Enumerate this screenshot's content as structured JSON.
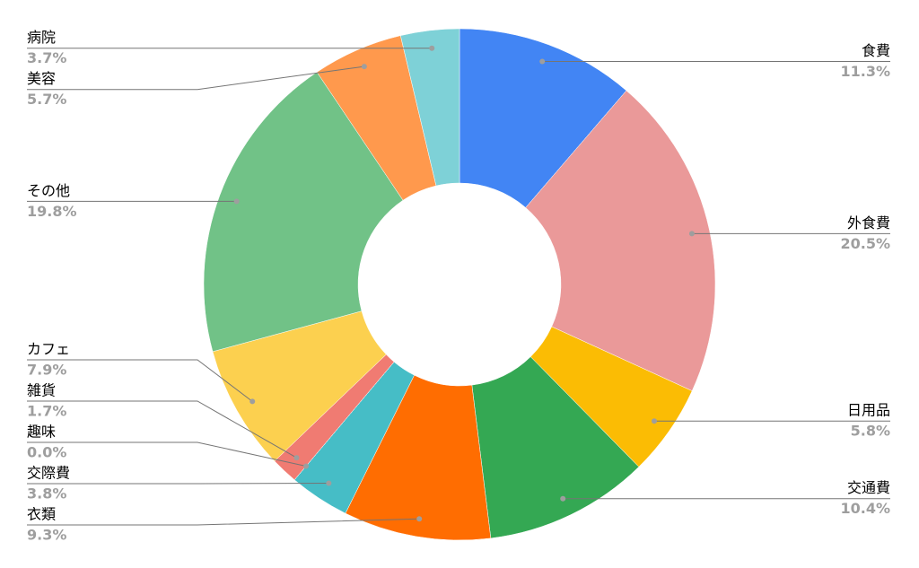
{
  "chart_data": {
    "type": "donut",
    "categories": [
      "食費",
      "外食費",
      "日用品",
      "交通費",
      "衣類",
      "交際費",
      "趣味",
      "雑貨",
      "カフェ",
      "その他",
      "美容",
      "病院"
    ],
    "values": [
      11.3,
      20.5,
      5.8,
      10.4,
      9.3,
      3.8,
      0.0,
      1.7,
      7.9,
      19.8,
      5.7,
      3.7
    ],
    "value_labels": [
      "11.3%",
      "20.5%",
      "5.8%",
      "10.4%",
      "9.3%",
      "3.8%",
      "0.0%",
      "1.7%",
      "7.9%",
      "19.8%",
      "5.7%",
      "3.7%"
    ],
    "colors": [
      "#4285f4",
      "#ea9999",
      "#fbbc04",
      "#34a853",
      "#ff6d01",
      "#46bdc6",
      "#7baaf7",
      "#f07b72",
      "#fcd04f",
      "#71c287",
      "#ff994d",
      "#7ed1d7"
    ]
  }
}
